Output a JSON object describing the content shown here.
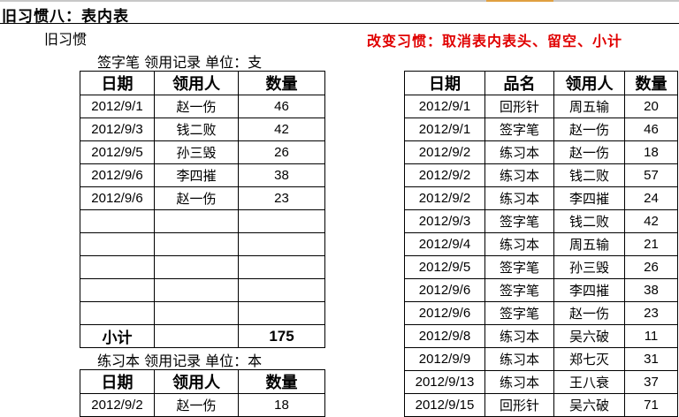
{
  "title": "旧习惯八：表内表",
  "old_label": "旧习惯",
  "new_label": "改变习惯：取消表内表头、留空、小计",
  "colors": {
    "new_label": "#e00000"
  },
  "left": {
    "table1": {
      "caption": "签字笔 领用记录   单位：支",
      "headers": [
        "日期",
        "领用人",
        "数量"
      ],
      "rows": [
        [
          "2012/9/1",
          "赵一伤",
          "46"
        ],
        [
          "2012/9/3",
          "钱二败",
          "42"
        ],
        [
          "2012/9/5",
          "孙三毁",
          "26"
        ],
        [
          "2012/9/6",
          "李四摧",
          "38"
        ],
        [
          "2012/9/6",
          "赵一伤",
          "23"
        ],
        [
          "",
          "",
          ""
        ],
        [
          "",
          "",
          ""
        ],
        [
          "",
          "",
          ""
        ],
        [
          "",
          "",
          ""
        ],
        [
          "",
          "",
          ""
        ]
      ],
      "subtotal": {
        "label": "小计",
        "value": "175"
      }
    },
    "table2": {
      "caption": "练习本 领用记录   单位：本",
      "headers": [
        "日期",
        "领用人",
        "数量"
      ],
      "rows": [
        [
          "2012/9/2",
          "赵一伤",
          "18"
        ]
      ]
    }
  },
  "right": {
    "headers": [
      "日期",
      "品名",
      "领用人",
      "数量"
    ],
    "rows": [
      [
        "2012/9/1",
        "回形针",
        "周五输",
        "20"
      ],
      [
        "2012/9/1",
        "签字笔",
        "赵一伤",
        "46"
      ],
      [
        "2012/9/2",
        "练习本",
        "赵一伤",
        "18"
      ],
      [
        "2012/9/2",
        "练习本",
        "钱二败",
        "57"
      ],
      [
        "2012/9/2",
        "练习本",
        "李四摧",
        "24"
      ],
      [
        "2012/9/3",
        "签字笔",
        "钱二败",
        "42"
      ],
      [
        "2012/9/4",
        "练习本",
        "周五输",
        "21"
      ],
      [
        "2012/9/5",
        "签字笔",
        "孙三毁",
        "26"
      ],
      [
        "2012/9/6",
        "签字笔",
        "李四摧",
        "38"
      ],
      [
        "2012/9/6",
        "签字笔",
        "赵一伤",
        "23"
      ],
      [
        "2012/9/8",
        "练习本",
        "吴六破",
        "11"
      ],
      [
        "2012/9/9",
        "练习本",
        "郑七灭",
        "31"
      ],
      [
        "2012/9/13",
        "练习本",
        "王八衰",
        "37"
      ],
      [
        "2012/9/15",
        "回形针",
        "吴六破",
        "71"
      ]
    ]
  }
}
